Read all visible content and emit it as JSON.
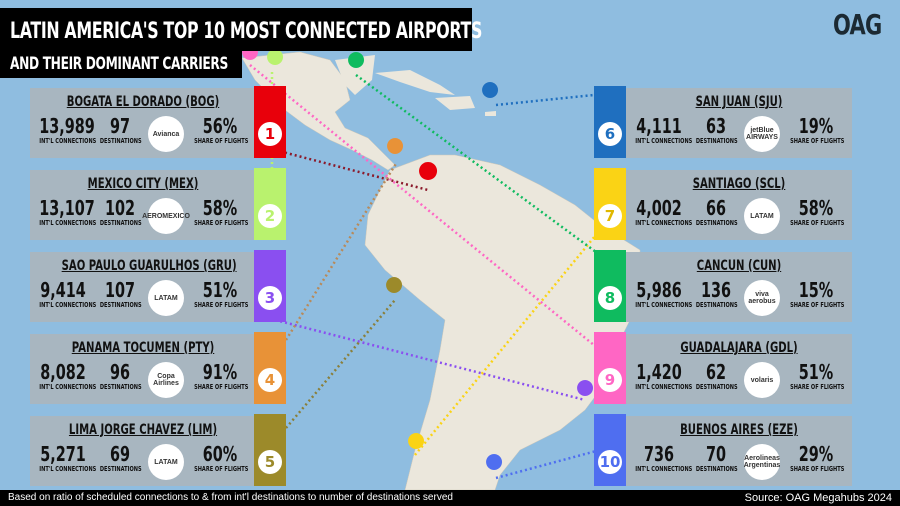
{
  "header": {
    "title_line1": "LATIN AMERICA'S TOP 10 MOST CONNECTED AIRPORTS",
    "title_line2": "AND THEIR DOMINANT CARRIERS",
    "brand_logo": "OAG"
  },
  "labels": {
    "connections": "INT'L CONNECTIONS",
    "destinations": "DESTINATIONS",
    "share": "SHARE OF FLIGHTS"
  },
  "airports": [
    {
      "rank": "1",
      "name": "BOGATA EL DORADO (BOG)",
      "connections": "13,989",
      "destinations": "97",
      "carrier": "Avianca",
      "share": "56%",
      "color": "#e8000b",
      "text_color": "#e8000b"
    },
    {
      "rank": "2",
      "name": "MEXICO CITY  (MEX)",
      "connections": "13,107",
      "destinations": "102",
      "carrier": "AEROMEXICO",
      "share": "58%",
      "color": "#b9f26e",
      "text_color": "#b9f26e"
    },
    {
      "rank": "3",
      "name": "SAO PAULO GUARULHOS (GRU)",
      "connections": "9,414",
      "destinations": "107",
      "carrier": "LATAM",
      "share": "51%",
      "color": "#8a4ff0",
      "text_color": "#8a4ff0"
    },
    {
      "rank": "4",
      "name": "PANAMA TOCUMEN (PTY)",
      "connections": "8,082",
      "destinations": "96",
      "carrier": "Copa Airlines",
      "share": "91%",
      "color": "#e89237",
      "text_color": "#e89237"
    },
    {
      "rank": "5",
      "name": "LIMA JORGE CHAVEZ (LIM)",
      "connections": "5,271",
      "destinations": "69",
      "carrier": "LATAM",
      "share": "60%",
      "color": "#9c8a2a",
      "text_color": "#9c8a2a"
    },
    {
      "rank": "6",
      "name": "SAN JUAN (SJU)",
      "connections": "4,111",
      "destinations": "63",
      "carrier": "jetBlue AIRWAYS",
      "share": "19%",
      "color": "#1f6fbf",
      "text_color": "#1f6fbf"
    },
    {
      "rank": "7",
      "name": "SANTIAGO (SCL)",
      "connections": "4,002",
      "destinations": "66",
      "carrier": "LATAM",
      "share": "58%",
      "color": "#fad315",
      "text_color": "#e0b800"
    },
    {
      "rank": "8",
      "name": "CANCUN (CUN)",
      "connections": "5,986",
      "destinations": "136",
      "carrier": "viva aerobus",
      "share": "15%",
      "color": "#0fbb5f",
      "text_color": "#0fbb5f"
    },
    {
      "rank": "9",
      "name": "GUADALAJARA (GDL)",
      "connections": "1,420",
      "destinations": "62",
      "carrier": "volaris",
      "share": "51%",
      "color": "#ff66c4",
      "text_color": "#ff66c4"
    },
    {
      "rank": "10",
      "name": "BUENOS AIRES (EZE)",
      "connections": "736",
      "destinations": "70",
      "carrier": "Aerolineas Argentinas",
      "share": "29%",
      "color": "#4f6ef0",
      "text_color": "#4f6ef0"
    }
  ],
  "footer": {
    "note": "Based on ratio of scheduled connections to & from int'l destinations to number of destinations served",
    "source": "Source: OAG Megahubs 2024"
  }
}
